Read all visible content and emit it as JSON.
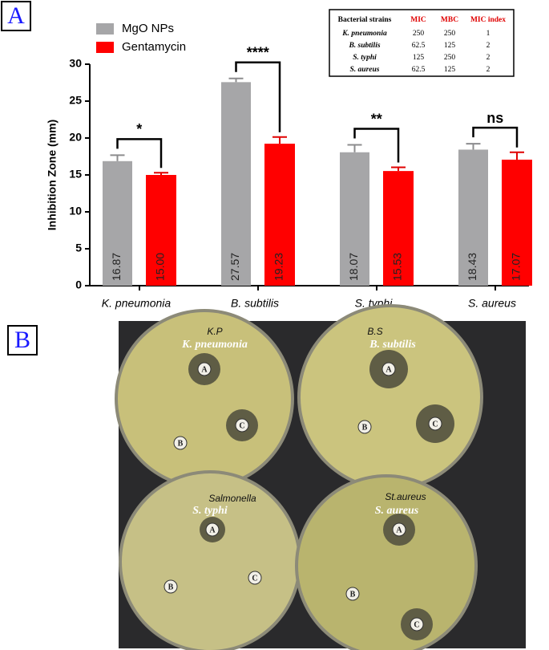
{
  "panel_labels": [
    "A",
    "B"
  ],
  "chart_data": {
    "type": "bar",
    "y_label": "Inhibition Zone (mm)",
    "categories": [
      "K. pneumonia",
      "B. subtilis",
      "S. typhi",
      "S. aureus"
    ],
    "series": [
      {
        "name": "MgO NPs",
        "color": "#a6a6a8",
        "error_color": "#8c8c8e",
        "values": [
          16.87,
          27.57,
          18.07,
          18.43
        ],
        "value_labels": [
          "16.87",
          "27.57",
          "18.07",
          "18.43"
        ],
        "errors": [
          0.8,
          0.5,
          1.0,
          0.8
        ]
      },
      {
        "name": "Gentamycin",
        "color": "#ff0000",
        "error_color": "#e00000",
        "values": [
          15.0,
          19.23,
          15.53,
          17.07
        ],
        "value_labels": [
          "15.00",
          "19.23",
          "15.53",
          "17.07"
        ],
        "errors": [
          0.3,
          0.9,
          0.5,
          1.0
        ]
      }
    ],
    "significance": [
      "*",
      "****",
      "**",
      "ns"
    ],
    "ylim": [
      0,
      30
    ],
    "yticks": [
      0,
      5,
      10,
      15,
      20,
      25,
      30
    ]
  },
  "inset_table": {
    "header": [
      "Bacterial strains",
      "MIC",
      "MBC",
      "MIC index"
    ],
    "rows": [
      [
        "K. pneumonia",
        "250",
        "250",
        "1"
      ],
      [
        "B. subtilis",
        "62.5",
        "125",
        "2"
      ],
      [
        "S. typhi",
        "125",
        "250",
        "2"
      ],
      [
        "S. aureus",
        "62.5",
        "125",
        "2"
      ]
    ]
  },
  "plates": [
    {
      "organism": "K. pneumonia",
      "handwriting": "K.P",
      "discs": [
        "A",
        "B",
        "C"
      ]
    },
    {
      "organism": "B. subtilis",
      "handwriting": "B.S",
      "discs": [
        "A",
        "B",
        "C"
      ]
    },
    {
      "organism": "S. typhi",
      "handwriting": "Salmonella",
      "discs": [
        "A",
        "B",
        "C"
      ]
    },
    {
      "organism": "S. aureus",
      "handwriting": "St.aureus",
      "discs": [
        "A",
        "B",
        "C"
      ]
    }
  ]
}
